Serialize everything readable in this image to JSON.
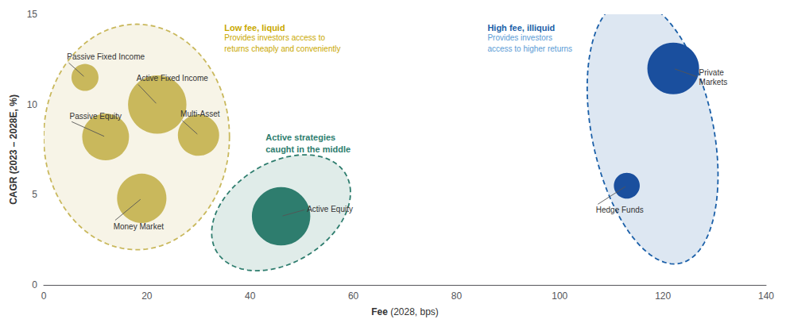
{
  "chart_data": {
    "type": "bubble",
    "xlabel": "Fee (2028, bps)",
    "ylabel": "CAGR (2023 – 2028E, %)",
    "xlim": [
      0,
      140
    ],
    "xticks": [
      0,
      20,
      40,
      60,
      80,
      100,
      120,
      140
    ],
    "ylim": [
      0,
      15
    ],
    "yticks": [
      0,
      5,
      10,
      15
    ],
    "grid": false,
    "bubbles": [
      {
        "label": "Passive Fixed Income",
        "x": 8,
        "y": 11.5,
        "size": 600,
        "color": "#c9b85c",
        "label_x": 4.5,
        "label_y": 12.4
      },
      {
        "label": "Passive Equity",
        "x": 12,
        "y": 8.2,
        "size": 1800,
        "color": "#c9b85c",
        "label_x": 5.0,
        "label_y": 9.1
      },
      {
        "label": "Active Fixed Income",
        "x": 22,
        "y": 10.0,
        "size": 2800,
        "color": "#c9b85c",
        "label_x": 18.0,
        "label_y": 11.2
      },
      {
        "label": "Multi-Asset",
        "x": 30,
        "y": 8.3,
        "size": 1400,
        "color": "#c9b85c",
        "label_x": 26.5,
        "label_y": 9.2
      },
      {
        "label": "Money Market",
        "x": 19,
        "y": 4.8,
        "size": 2000,
        "color": "#c9b85c",
        "label_x": 13.5,
        "label_y": 3.5
      },
      {
        "label": "Active Equity",
        "x": 46,
        "y": 3.8,
        "size": 2800,
        "color": "#2e7d6e",
        "label_x": 51.0,
        "label_y": 4.2
      },
      {
        "label": "Private\nMarkets",
        "x": 122,
        "y": 12.0,
        "size": 2200,
        "color": "#1a4f9e",
        "label_x": 127,
        "label_y": 11.5
      },
      {
        "label": "Hedge Funds",
        "x": 113,
        "y": 5.5,
        "size": 550,
        "color": "#1a4f9e",
        "label_x": 107,
        "label_y": 4.4
      }
    ],
    "regions": [
      {
        "cx": 18,
        "cy": 8.2,
        "width": 36,
        "height": 12.5,
        "angle": 0,
        "color": "#c9b85c"
      },
      {
        "cx": 46,
        "cy": 4.0,
        "width": 27,
        "height": 6.0,
        "angle": 5,
        "color": "#2e7d6e"
      },
      {
        "cx": 118,
        "cy": 8.5,
        "width": 26,
        "height": 13.5,
        "angle": -15,
        "color": "#1a5fa8"
      }
    ],
    "annotations": [
      {
        "text": "Low fee, liquid",
        "x": 35,
        "y": 14.6,
        "color": "#c9a800",
        "bold": true
      },
      {
        "text": "Provides investors access to\nreturns cheaply and conveniently",
        "x": 35,
        "y": 14.0,
        "color": "#c9a800",
        "bold": false
      },
      {
        "text": "Active strategies\ncaught in the middle",
        "x": 43,
        "y": 8.5,
        "color": "#2e7d6e",
        "bold": true
      },
      {
        "text": "High fee, illiquid",
        "x": 86,
        "y": 14.6,
        "color": "#1a5fa8",
        "bold": true
      },
      {
        "text": "Provides investors\naccess to higher returns",
        "x": 86,
        "y": 14.0,
        "color": "#5b9bd5",
        "bold": false
      }
    ]
  }
}
